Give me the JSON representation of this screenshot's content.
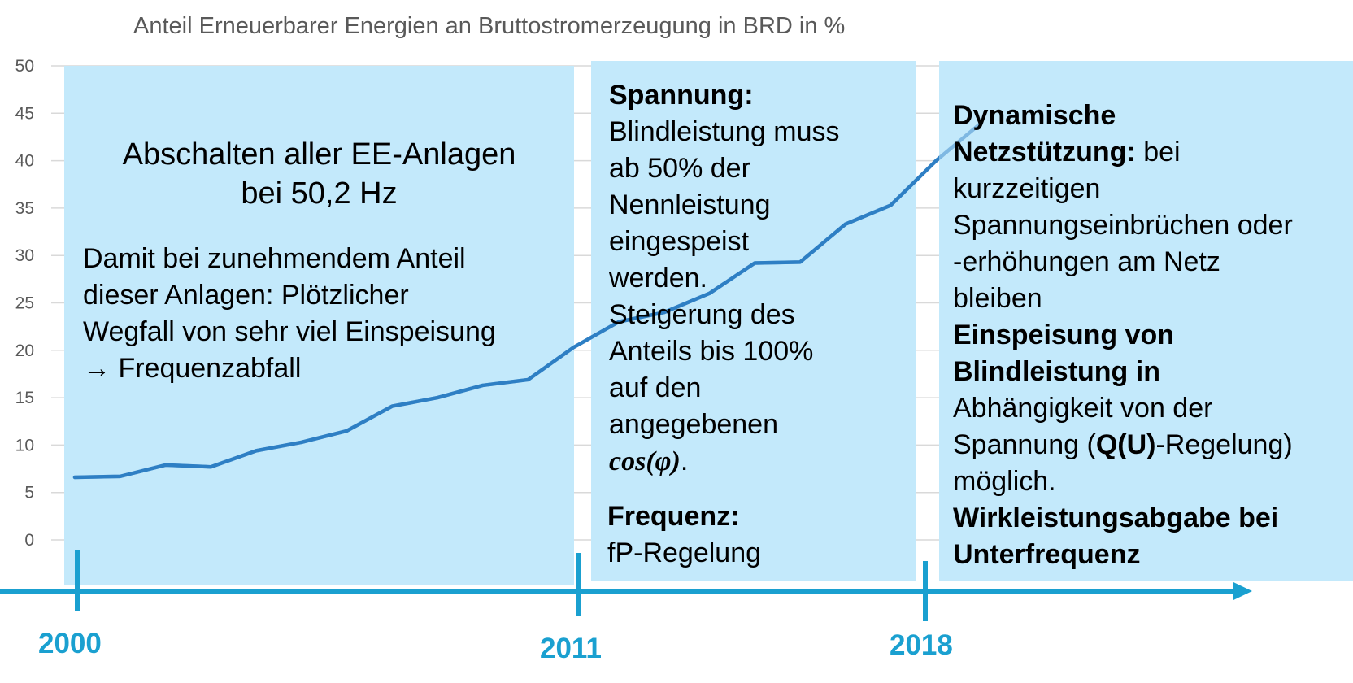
{
  "chart_data": {
    "type": "line",
    "title": "Anteil Erneuerbarer Energien an Bruttostromerzeugung in BRD in %",
    "xlabel": "",
    "ylabel": "",
    "ylim": [
      0,
      50
    ],
    "ytick_labels": [
      "0",
      "5",
      "10",
      "15",
      "20",
      "25",
      "30",
      "35",
      "40",
      "45",
      "50"
    ],
    "grid": true,
    "x": [
      2000,
      2001,
      2002,
      2003,
      2004,
      2005,
      2006,
      2007,
      2008,
      2009,
      2010,
      2011,
      2012,
      2013,
      2014,
      2015,
      2016,
      2017,
      2018,
      2019,
      2020
    ],
    "series": [
      {
        "color": "#2e7fc4",
        "values": [
          6.6,
          6.7,
          7.9,
          7.7,
          9.4,
          10.3,
          11.5,
          14.1,
          15.0,
          16.3,
          16.9,
          20.3,
          23.0,
          24.0,
          26.0,
          29.2,
          29.3,
          33.3,
          35.3,
          40.0,
          44.0
        ]
      }
    ]
  },
  "timeline": {
    "years": [
      "2000",
      "2011",
      "2018"
    ],
    "color": "#1aa0d0"
  },
  "panel1": {
    "heading_line1": "Abschalten aller EE-Anlagen",
    "heading_line2": "bei 50,2 Hz",
    "body_line1": "Damit bei zunehmendem Anteil",
    "body_line2": "dieser Anlagen: Plötzlicher",
    "body_line3": "Wegfall von sehr viel Einspeisung",
    "body_arrow": "→",
    "body_line4": "Frequenzabfall"
  },
  "panel2": {
    "spannung_heading": "Spannung:",
    "spannung_lines": [
      "Blindleistung muss",
      "ab 50% der",
      "Nennleistung",
      "eingespeist",
      "werden.",
      "Steigerung des",
      "Anteils bis 100%",
      "auf den",
      "angegebenen"
    ],
    "formula": "cos(φ)",
    "formula_suffix": ".",
    "frequenz_heading": "Frequenz:",
    "frequenz_text": "fP-Regelung"
  },
  "panel3": {
    "dyn_line1": "Dynamische",
    "dyn_bold2": "Netzstützung:",
    "dyn_rest2": " bei",
    "dyn_lines": [
      "kurzzeitigen",
      "Spannungseinbrüchen oder",
      "-erhöhungen am Netz",
      "bleiben"
    ],
    "einsp_bold1": "Einspeisung von",
    "einsp_bold2": "Blindleistung in",
    "einsp_line3": "Abhängigkeit von der",
    "einsp_pre": "Spannung (",
    "einsp_bold_qu": "Q(U)",
    "einsp_post": "-Regelung)",
    "einsp_line5": "möglich.",
    "wirk_line1": "Wirkleistungsabgabe bei",
    "wirk_line2": "Unterfrequenz"
  },
  "colors": {
    "panel": "#c3e9fb",
    "line": "#2e7fc4",
    "grid": "#d9d9d9",
    "axis_text": "#595959"
  }
}
